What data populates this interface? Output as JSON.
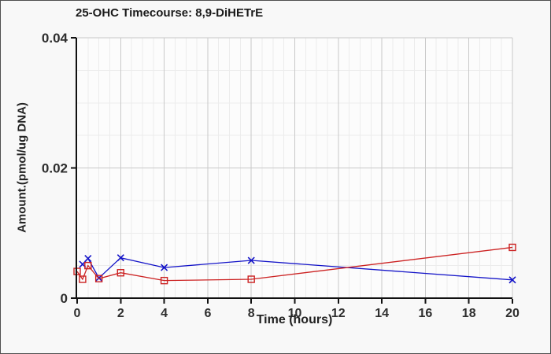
{
  "chart_data": {
    "type": "line",
    "title": "25-OHC Timecourse: 8,9-DiHETrE",
    "xlabel": "Time (hours)",
    "ylabel": "Amount.(pmol/ug DNA)",
    "xlim": [
      0,
      20
    ],
    "ylim": [
      0,
      0.04
    ],
    "x_major_ticks": [
      0,
      2,
      4,
      6,
      8,
      10,
      12,
      14,
      16,
      18,
      20
    ],
    "x_tick_labels": [
      "0",
      "2",
      "4",
      "6",
      "8",
      "10",
      "12",
      "14",
      "16",
      "18",
      "20"
    ],
    "y_major_ticks": [
      0,
      0.02,
      0.04
    ],
    "y_tick_labels": [
      "0",
      "0.02",
      "0.04"
    ],
    "x_minor_step": 0.5,
    "y_minor_step": 0.005,
    "grid": "major and minor, on",
    "legend": "none",
    "series": [
      {
        "name": "blue-x-series",
        "color": "#1414c8",
        "marker": "x",
        "x": [
          0.25,
          0.5,
          1,
          2,
          4,
          8,
          20
        ],
        "y": [
          0.0052,
          0.0061,
          0.0031,
          0.0062,
          0.0047,
          0.0058,
          0.0028
        ]
      },
      {
        "name": "red-square-series",
        "color": "#cc2222",
        "marker": "open-square",
        "x": [
          0,
          0.25,
          0.5,
          1,
          2,
          4,
          8,
          20
        ],
        "y": [
          0.0041,
          0.0029,
          0.005,
          0.003,
          0.0039,
          0.0027,
          0.0029,
          0.0078
        ]
      }
    ],
    "colors": {
      "figure_background": "#f8f8f8",
      "plot_background": "#fcfcfc",
      "grid_minor": "#ececec",
      "grid_major": "#c9c9c9",
      "axis": "#111111",
      "tick_text": "#2e2e2e",
      "border": "#4f4f4f"
    }
  }
}
